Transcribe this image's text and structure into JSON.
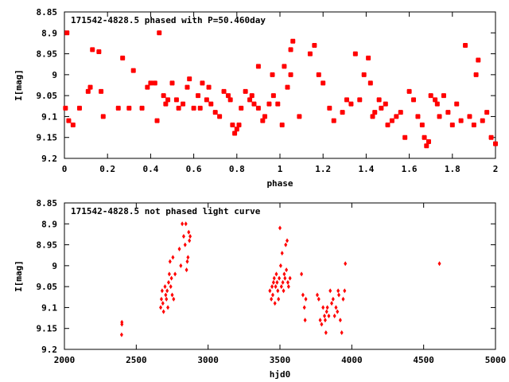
{
  "chart_data": [
    {
      "type": "scatter",
      "title": "171542-4828.5 phased with P=50.460day",
      "xlabel": "phase",
      "ylabel": "I[mag]",
      "xlim": [
        0,
        2
      ],
      "ylim": [
        8.85,
        9.2
      ],
      "y_inverted": true,
      "xticks": [
        "0",
        "0.2",
        "0.4",
        "0.6",
        "0.8",
        "1",
        "1.2",
        "1.4",
        "1.6",
        "1.8",
        "2"
      ],
      "xtick_values": [
        0,
        0.2,
        0.4,
        0.6,
        0.8,
        1,
        1.2,
        1.4,
        1.6,
        1.8,
        2
      ],
      "yticks": [
        "8.85",
        "8.9",
        "8.95",
        "9",
        "9.05",
        "9.1",
        "9.15",
        "9.2"
      ],
      "ytick_values": [
        8.85,
        8.9,
        8.95,
        9,
        9.05,
        9.1,
        9.15,
        9.2
      ],
      "marker_color": "#ff0000",
      "marker": "cross-dot",
      "grid": false,
      "points": [
        [
          0.005,
          9.08
        ],
        [
          0.012,
          8.9
        ],
        [
          0.02,
          9.11
        ],
        [
          0.04,
          9.12
        ],
        [
          0.07,
          9.08
        ],
        [
          0.11,
          9.04
        ],
        [
          0.12,
          9.03
        ],
        [
          0.13,
          8.94
        ],
        [
          0.16,
          8.945
        ],
        [
          0.17,
          9.04
        ],
        [
          0.18,
          9.1
        ],
        [
          0.25,
          9.08
        ],
        [
          0.3,
          9.08
        ],
        [
          0.32,
          8.99
        ],
        [
          0.36,
          9.08
        ],
        [
          0.385,
          9.03
        ],
        [
          0.4,
          9.02
        ],
        [
          0.42,
          9.02
        ],
        [
          0.43,
          9.11
        ],
        [
          0.44,
          8.9
        ],
        [
          0.46,
          9.05
        ],
        [
          0.47,
          9.07
        ],
        [
          0.48,
          9.06
        ],
        [
          0.5,
          9.02
        ],
        [
          0.52,
          9.06
        ],
        [
          0.53,
          9.08
        ],
        [
          0.55,
          9.07
        ],
        [
          0.57,
          9.03
        ],
        [
          0.58,
          9.01
        ],
        [
          0.6,
          9.08
        ],
        [
          0.62,
          9.05
        ],
        [
          0.63,
          9.08
        ],
        [
          0.64,
          9.02
        ],
        [
          0.66,
          9.06
        ],
        [
          0.67,
          9.03
        ],
        [
          0.68,
          9.07
        ],
        [
          0.7,
          9.09
        ],
        [
          0.72,
          9.1
        ],
        [
          0.74,
          9.04
        ],
        [
          0.76,
          9.05
        ],
        [
          0.77,
          9.06
        ],
        [
          0.78,
          9.12
        ],
        [
          0.79,
          9.14
        ],
        [
          0.8,
          9.13
        ],
        [
          0.81,
          9.12
        ],
        [
          0.82,
          9.08
        ],
        [
          0.84,
          9.04
        ],
        [
          0.86,
          9.06
        ],
        [
          0.87,
          9.05
        ],
        [
          0.88,
          9.07
        ],
        [
          0.9,
          9.08
        ],
        [
          0.92,
          9.11
        ],
        [
          0.93,
          9.1
        ],
        [
          0.95,
          9.07
        ],
        [
          0.965,
          9.0
        ],
        [
          0.97,
          9.05
        ],
        [
          0.99,
          9.07
        ],
        [
          1.01,
          9.12
        ],
        [
          1.035,
          9.03
        ],
        [
          1.05,
          8.94
        ],
        [
          1.06,
          8.92
        ],
        [
          1.09,
          9.1
        ],
        [
          1.14,
          8.95
        ],
        [
          1.16,
          8.93
        ],
        [
          1.18,
          9.0
        ],
        [
          1.2,
          9.02
        ],
        [
          1.23,
          9.08
        ],
        [
          1.25,
          9.11
        ],
        [
          1.29,
          9.09
        ],
        [
          1.31,
          9.06
        ],
        [
          1.33,
          9.07
        ],
        [
          1.35,
          8.95
        ],
        [
          1.37,
          9.06
        ],
        [
          1.39,
          9.0
        ],
        [
          1.41,
          8.96
        ],
        [
          1.42,
          9.02
        ],
        [
          1.43,
          9.1
        ],
        [
          1.44,
          9.09
        ],
        [
          1.46,
          9.06
        ],
        [
          1.47,
          9.08
        ],
        [
          1.49,
          9.07
        ],
        [
          1.5,
          9.12
        ],
        [
          1.52,
          9.11
        ],
        [
          1.54,
          9.1
        ],
        [
          1.56,
          9.09
        ],
        [
          1.58,
          9.15
        ],
        [
          1.6,
          9.04
        ],
        [
          1.62,
          9.06
        ],
        [
          1.64,
          9.1
        ],
        [
          1.66,
          9.12
        ],
        [
          1.67,
          9.15
        ],
        [
          1.68,
          9.17
        ],
        [
          1.69,
          9.16
        ],
        [
          1.7,
          9.05
        ],
        [
          1.72,
          9.06
        ],
        [
          1.73,
          9.07
        ],
        [
          1.74,
          9.1
        ],
        [
          1.76,
          9.05
        ],
        [
          1.78,
          9.09
        ],
        [
          1.8,
          9.12
        ],
        [
          1.82,
          9.07
        ],
        [
          1.84,
          9.11
        ],
        [
          1.86,
          8.93
        ],
        [
          1.88,
          9.1
        ],
        [
          1.9,
          9.12
        ],
        [
          1.91,
          9.0
        ],
        [
          1.92,
          8.965
        ],
        [
          1.94,
          9.11
        ],
        [
          1.96,
          9.09
        ],
        [
          1.98,
          9.15
        ],
        [
          2.0,
          9.165
        ],
        [
          1.05,
          9.0
        ],
        [
          1.02,
          8.98
        ],
        [
          0.9,
          8.98
        ],
        [
          0.27,
          8.96
        ]
      ]
    },
    {
      "type": "scatter",
      "title": "171542-4828.5 not phased light curve",
      "xlabel": "hjd0",
      "ylabel": "I[mag]",
      "xlim": [
        2000,
        5000
      ],
      "ylim": [
        8.85,
        9.2
      ],
      "y_inverted": true,
      "xticks": [
        "2000",
        "2500",
        "3000",
        "3500",
        "4000",
        "4500",
        "5000"
      ],
      "xtick_values": [
        2000,
        2500,
        3000,
        3500,
        4000,
        4500,
        5000
      ],
      "yticks": [
        "8.85",
        "8.9",
        "8.95",
        "9",
        "9.05",
        "9.1",
        "9.15",
        "9.2"
      ],
      "ytick_values": [
        8.85,
        8.9,
        8.95,
        9,
        9.05,
        9.1,
        9.15,
        9.2
      ],
      "marker_color": "#ff0000",
      "marker": "diamond",
      "grid": false,
      "points": [
        [
          2400,
          9.14
        ],
        [
          2400,
          9.135
        ],
        [
          2398,
          9.165
        ],
        [
          2670,
          9.1
        ],
        [
          2675,
          9.08
        ],
        [
          2680,
          9.06
        ],
        [
          2685,
          9.09
        ],
        [
          2690,
          9.11
        ],
        [
          2700,
          9.05
        ],
        [
          2705,
          9.07
        ],
        [
          2710,
          9.08
        ],
        [
          2715,
          9.06
        ],
        [
          2720,
          9.1
        ],
        [
          2725,
          9.04
        ],
        [
          2730,
          9.02
        ],
        [
          2735,
          8.99
        ],
        [
          2740,
          9.05
        ],
        [
          2745,
          9.03
        ],
        [
          2750,
          9.07
        ],
        [
          2755,
          8.98
        ],
        [
          2760,
          9.08
        ],
        [
          2770,
          9.02
        ],
        [
          2800,
          8.96
        ],
        [
          2810,
          9.0
        ],
        [
          2820,
          8.9
        ],
        [
          2830,
          8.93
        ],
        [
          2840,
          8.95
        ],
        [
          2845,
          8.9
        ],
        [
          2850,
          9.01
        ],
        [
          2855,
          8.99
        ],
        [
          2860,
          8.98
        ],
        [
          2865,
          8.92
        ],
        [
          2870,
          8.94
        ],
        [
          2875,
          8.93
        ],
        [
          3430,
          9.06
        ],
        [
          3440,
          9.08
        ],
        [
          3445,
          9.05
        ],
        [
          3450,
          9.07
        ],
        [
          3455,
          9.04
        ],
        [
          3460,
          9.03
        ],
        [
          3465,
          9.09
        ],
        [
          3470,
          9.05
        ],
        [
          3475,
          9.02
        ],
        [
          3480,
          9.04
        ],
        [
          3485,
          9.06
        ],
        [
          3490,
          9.08
        ],
        [
          3495,
          9.03
        ],
        [
          3500,
          8.91
        ],
        [
          3505,
          9.0
        ],
        [
          3510,
          9.05
        ],
        [
          3515,
          8.97
        ],
        [
          3520,
          9.04
        ],
        [
          3525,
          9.06
        ],
        [
          3530,
          9.02
        ],
        [
          3535,
          9.03
        ],
        [
          3540,
          8.95
        ],
        [
          3545,
          9.01
        ],
        [
          3550,
          8.94
        ],
        [
          3555,
          9.04
        ],
        [
          3560,
          9.05
        ],
        [
          3570,
          9.03
        ],
        [
          3650,
          9.02
        ],
        [
          3660,
          9.07
        ],
        [
          3670,
          9.1
        ],
        [
          3675,
          9.13
        ],
        [
          3680,
          9.08
        ],
        [
          3760,
          9.07
        ],
        [
          3770,
          9.08
        ],
        [
          3780,
          9.13
        ],
        [
          3790,
          9.14
        ],
        [
          3800,
          9.1
        ],
        [
          3810,
          9.12
        ],
        [
          3815,
          9.13
        ],
        [
          3820,
          9.16
        ],
        [
          3825,
          9.11
        ],
        [
          3830,
          9.1
        ],
        [
          3840,
          9.12
        ],
        [
          3850,
          9.06
        ],
        [
          3860,
          9.09
        ],
        [
          3870,
          9.08
        ],
        [
          3880,
          9.12
        ],
        [
          3890,
          9.1
        ],
        [
          3900,
          9.11
        ],
        [
          3905,
          9.06
        ],
        [
          3910,
          9.07
        ],
        [
          3920,
          9.13
        ],
        [
          3930,
          9.16
        ],
        [
          3940,
          9.08
        ],
        [
          3950,
          9.06
        ],
        [
          3955,
          8.995
        ],
        [
          4610,
          8.995
        ]
      ]
    }
  ]
}
